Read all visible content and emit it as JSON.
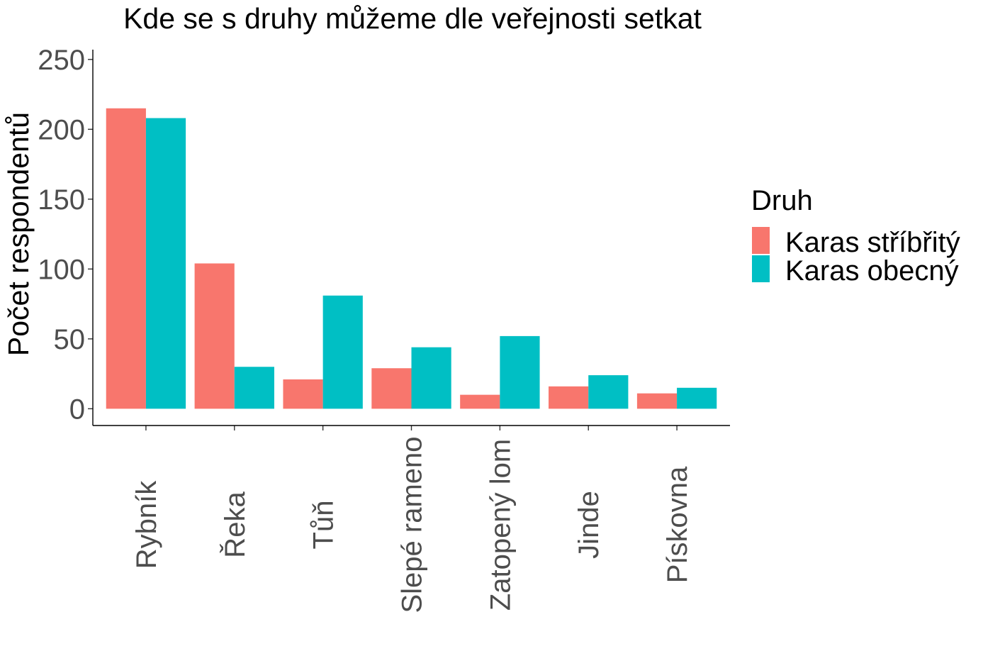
{
  "chart_data": {
    "type": "bar",
    "title": "Kde se s druhy můžeme dle veřejnosti setkat",
    "xlabel": "",
    "ylabel": "Počet respondentů",
    "categories": [
      "Rybník",
      "Řeka",
      "Tůň",
      "Slepé rameno",
      "Zatopený lom",
      "Jinde",
      "Pískovna"
    ],
    "series": [
      {
        "name": "Karas stříbřitý",
        "color": "#F8766D",
        "values": [
          215,
          104,
          21,
          29,
          10,
          16,
          11
        ]
      },
      {
        "name": "Karas obecný",
        "color": "#00BFC4",
        "values": [
          208,
          30,
          81,
          44,
          52,
          24,
          15
        ]
      }
    ],
    "ylim": [
      -12,
      257
    ],
    "yticks": [
      0,
      50,
      100,
      150,
      200,
      250
    ],
    "grid": false,
    "legend": {
      "title": "Druh",
      "position": "right"
    }
  }
}
